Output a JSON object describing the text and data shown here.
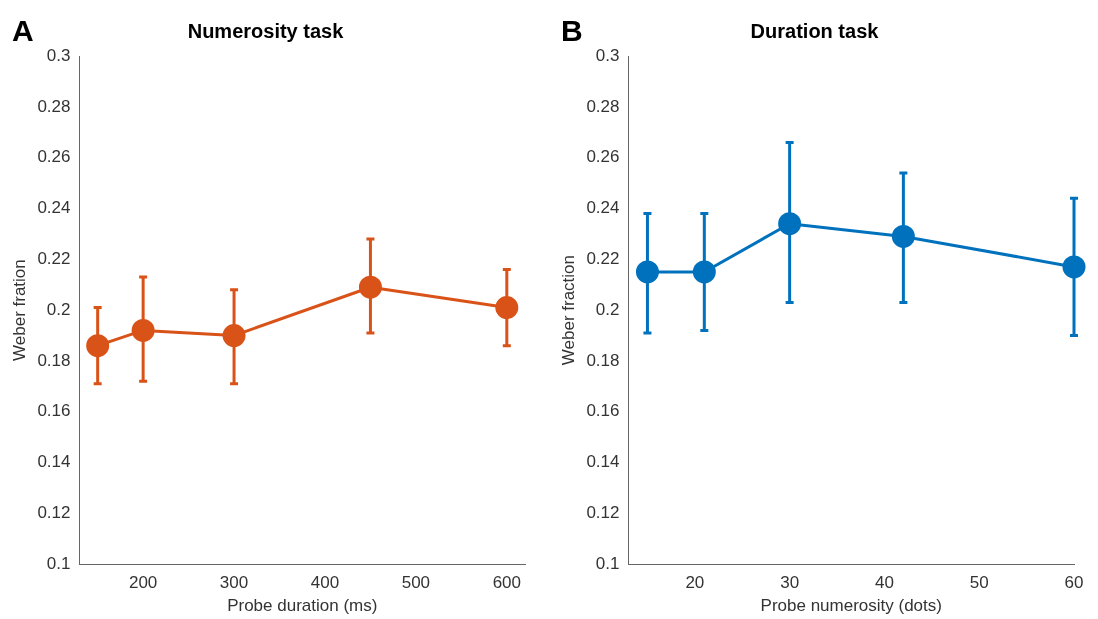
{
  "chart_data": [
    {
      "type": "line",
      "title": "Numerosity task",
      "xlabel": "Probe duration (ms)",
      "ylabel": "Weber fration",
      "annotations": [
        "A"
      ],
      "x": [
        150,
        200,
        300,
        450,
        600
      ],
      "series": [
        {
          "color": "#d95319",
          "values": [
            0.186,
            0.192,
            0.19,
            0.209,
            0.201
          ],
          "errors": [
            [
              0.171,
              0.201
            ],
            [
              0.172,
              0.213
            ],
            [
              0.171,
              0.208
            ],
            [
              0.191,
              0.228
            ],
            [
              0.186,
              0.216
            ]
          ]
        }
      ],
      "xlim": [
        130,
        620
      ],
      "xticks": [
        200,
        300,
        400,
        500,
        600
      ],
      "ylim": [
        0.1,
        0.3
      ],
      "yticks": [
        0.1,
        0.12,
        0.14,
        0.16,
        0.18,
        0.2,
        0.22,
        0.24,
        0.26,
        0.28,
        0.3
      ],
      "grid": false,
      "legend": false,
      "marker": "circle",
      "line_style": "solid"
    },
    {
      "type": "line",
      "title": "Duration task",
      "xlabel": "Probe numerosity (dots)",
      "ylabel": "Weber fraction",
      "annotations": [
        "B"
      ],
      "x": [
        15,
        21,
        30,
        42,
        60
      ],
      "series": [
        {
          "color": "#0072bd",
          "values": [
            0.215,
            0.215,
            0.234,
            0.229,
            0.217
          ],
          "errors": [
            [
              0.191,
              0.238
            ],
            [
              0.192,
              0.238
            ],
            [
              0.203,
              0.266
            ],
            [
              0.203,
              0.254
            ],
            [
              0.19,
              0.244
            ]
          ]
        }
      ],
      "xlim": [
        13,
        60
      ],
      "xticks": [
        20,
        30,
        40,
        50,
        60
      ],
      "ylim": [
        0.1,
        0.3
      ],
      "yticks": [
        0.1,
        0.12,
        0.14,
        0.16,
        0.18,
        0.2,
        0.22,
        0.24,
        0.26,
        0.28,
        0.3
      ],
      "grid": false,
      "legend": false,
      "marker": "circle",
      "line_style": "solid"
    }
  ]
}
